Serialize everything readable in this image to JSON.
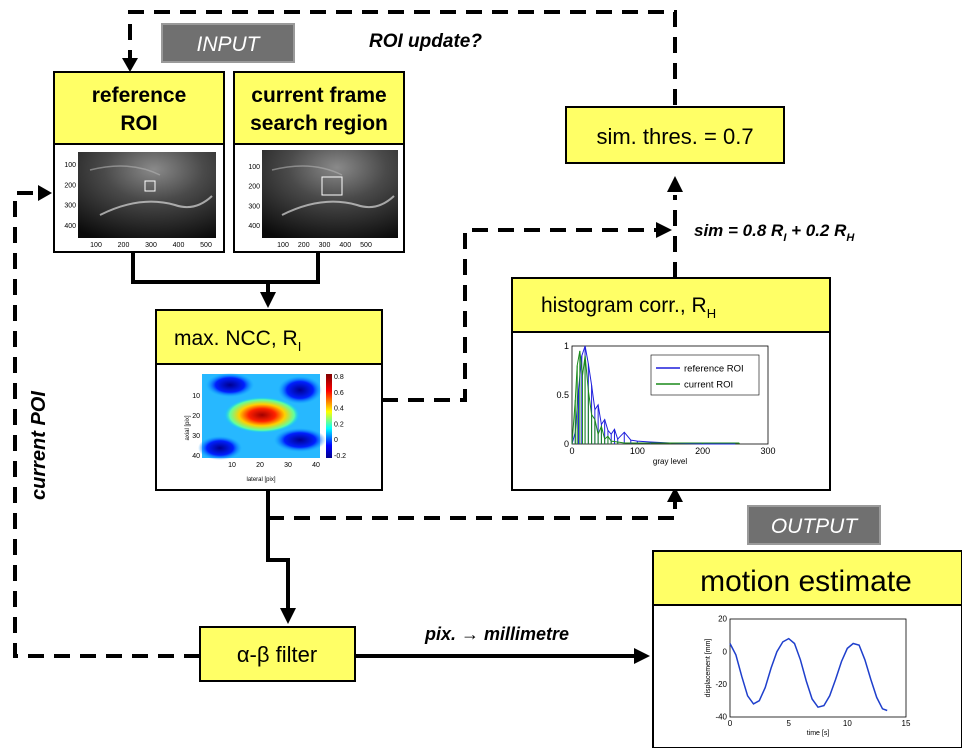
{
  "labels": {
    "input": "INPUT",
    "output": "OUTPUT",
    "roi_update": "ROI update?",
    "current_poi": "current POI",
    "pix_to_mm": "pix. → millimetre",
    "sim_formula": "sim = 0.8 R",
    "sim_formula_sub1": "I",
    "sim_formula_mid": " + 0.2 R",
    "sim_formula_sub2": "H"
  },
  "boxes": {
    "reference_roi_line1": "reference",
    "reference_roi_line2": "ROI",
    "current_frame_line1": "current frame",
    "current_frame_line2": "search region",
    "sim_threshold": "sim. thres. = 0.7",
    "max_ncc": "max. NCC, R",
    "max_ncc_sub": "I",
    "histogram_corr": "histogram corr., R",
    "histogram_corr_sub": "H",
    "alpha_beta": "α-β filter",
    "motion_estimate": "motion estimate"
  },
  "ultrasound_ref": {
    "y_ticks": [
      "100",
      "200",
      "300",
      "400"
    ],
    "x_ticks": [
      "100",
      "200",
      "300",
      "400",
      "500"
    ]
  },
  "ultrasound_cur": {
    "y_ticks": [
      "100",
      "200",
      "300",
      "400"
    ],
    "x_ticks": [
      "100",
      "200",
      "300",
      "400",
      "500"
    ]
  },
  "ncc_map": {
    "ylabel": "axial [pix]",
    "xlabel": "lateral [pix]",
    "y_ticks": [
      "10",
      "20",
      "30",
      "40"
    ],
    "x_ticks": [
      "10",
      "20",
      "30",
      "40"
    ],
    "colorbar_ticks": [
      "0.8",
      "0.6",
      "0.4",
      "0.2",
      "0",
      "-0.2"
    ],
    "colormap": "jet"
  },
  "chart_data": [
    {
      "type": "line",
      "xlabel": "gray level",
      "x_ticks": [
        "0",
        "100",
        "200",
        "300"
      ],
      "y_ticks": [
        "0",
        "0.5",
        "1"
      ],
      "xlim": [
        0,
        300
      ],
      "ylim": [
        0,
        1
      ],
      "legend_position": "top-right",
      "series": [
        {
          "name": "reference ROI",
          "color": "#1f1fdc",
          "x": [
            0,
            5,
            10,
            15,
            20,
            25,
            30,
            35,
            40,
            45,
            50,
            55,
            60,
            65,
            70,
            80,
            90,
            100,
            120,
            150,
            200,
            250
          ],
          "y": [
            0,
            0.12,
            0.55,
            0.9,
            1.0,
            0.82,
            0.6,
            0.35,
            0.4,
            0.2,
            0.25,
            0.14,
            0.1,
            0.15,
            0.05,
            0.12,
            0.04,
            0.03,
            0.02,
            0.01,
            0,
            0
          ]
        },
        {
          "name": "current ROI",
          "color": "#1a8a1a",
          "x": [
            0,
            5,
            8,
            12,
            16,
            20,
            25,
            30,
            35,
            40,
            45,
            50,
            55,
            60,
            70,
            80,
            100,
            150,
            200,
            256
          ],
          "y": [
            0,
            0.45,
            0.8,
            0.95,
            0.7,
            0.9,
            0.55,
            0.3,
            0.25,
            0.1,
            0.18,
            0.05,
            0.08,
            0.03,
            0.02,
            0.01,
            0.01,
            0.01,
            0.01,
            0.01
          ]
        }
      ]
    },
    {
      "type": "line",
      "ylabel": "displacement [mm]",
      "xlabel": "time [s]",
      "x_ticks": [
        "0",
        "5",
        "10",
        "15"
      ],
      "y_ticks": [
        "20",
        "0",
        "-20",
        "-40"
      ],
      "xlim": [
        0,
        15
      ],
      "ylim": [
        -40,
        20
      ],
      "series": [
        {
          "color": "#1f3fcc",
          "x": [
            0,
            0.5,
            1,
            1.5,
            2,
            2.5,
            3,
            3.5,
            4,
            4.5,
            5,
            5.5,
            6,
            6.5,
            7,
            7.5,
            8,
            8.5,
            9,
            9.5,
            10,
            10.5,
            11,
            11.5,
            12,
            12.5,
            13,
            13.4
          ],
          "y": [
            5,
            -2,
            -15,
            -27,
            -32,
            -30,
            -22,
            -10,
            0,
            6,
            8,
            5,
            -5,
            -18,
            -29,
            -34,
            -33,
            -27,
            -17,
            -6,
            2,
            5,
            4,
            -5,
            -17,
            -28,
            -35,
            -36
          ]
        }
      ]
    }
  ]
}
